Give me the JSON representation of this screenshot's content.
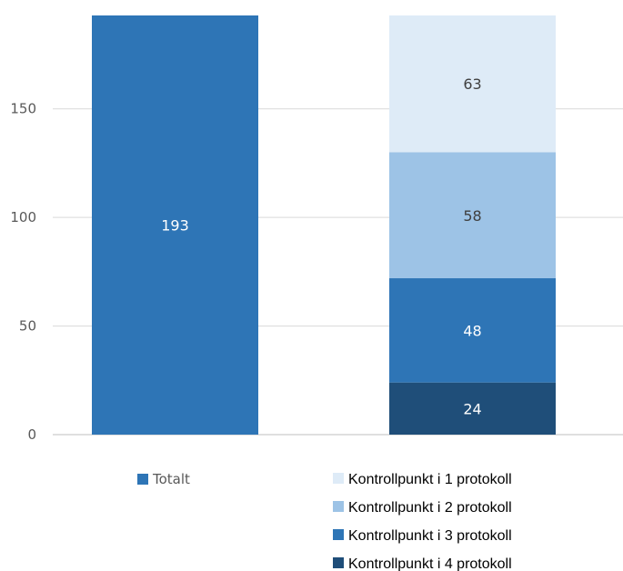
{
  "chart_data": {
    "type": "bar",
    "stacked": true,
    "categories": [
      "",
      ""
    ],
    "ylim": [
      0,
      193
    ],
    "yticks": [
      0,
      50,
      100,
      150
    ],
    "grid": true,
    "series": [
      {
        "name": "Totalt",
        "values": [
          193,
          null
        ],
        "color": "#2e75b6",
        "label_color": "#ffffff"
      },
      {
        "name": "Kontrollpunkt i 4 protokoll",
        "values": [
          null,
          24
        ],
        "color": "#1f4e79",
        "label_color": "#ffffff"
      },
      {
        "name": "Kontrollpunkt i 3 protokoll",
        "values": [
          null,
          48
        ],
        "color": "#2e75b6",
        "label_color": "#ffffff"
      },
      {
        "name": "Kontrollpunkt i 2 protokoll",
        "values": [
          null,
          58
        ],
        "color": "#9dc3e6",
        "label_color": "#404040"
      },
      {
        "name": "Kontrollpunkt i 1 protokoll",
        "values": [
          null,
          63
        ],
        "color": "#deebf7",
        "label_color": "#404040"
      }
    ],
    "legend": {
      "placement": "bottom",
      "columns": [
        [
          "Totalt"
        ],
        [
          "Kontrollpunkt i 1 protokoll",
          "Kontrollpunkt i 2 protokoll",
          "Kontrollpunkt i 3 protokoll",
          "Kontrollpunkt i 4 protokoll"
        ]
      ]
    }
  }
}
